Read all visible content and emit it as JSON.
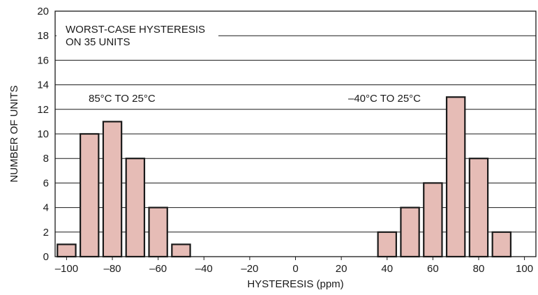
{
  "chart_data": {
    "type": "bar",
    "title": "",
    "xlabel": "HYSTERESIS (ppm)",
    "ylabel": "NUMBER OF UNITS",
    "xlim": [
      -105,
      105
    ],
    "ylim": [
      0,
      20
    ],
    "xticks": [
      -100,
      -80,
      -60,
      -40,
      -20,
      0,
      20,
      40,
      60,
      80,
      100
    ],
    "xtick_labels": [
      "–100",
      "–80",
      "–60",
      "–40",
      "–20",
      "0",
      "20",
      "40",
      "60",
      "80",
      "100"
    ],
    "yticks": [
      0,
      2,
      4,
      6,
      8,
      10,
      12,
      14,
      16,
      18,
      20
    ],
    "grid": "horizontal",
    "bin_width": 10,
    "bar_color": "#e6bcb6",
    "bar_edge_color": "#1a1a1a",
    "bars": [
      {
        "x": -100,
        "value": 1
      },
      {
        "x": -90,
        "value": 10
      },
      {
        "x": -80,
        "value": 11
      },
      {
        "x": -70,
        "value": 8
      },
      {
        "x": -60,
        "value": 4
      },
      {
        "x": -50,
        "value": 1
      },
      {
        "x": 40,
        "value": 2
      },
      {
        "x": 50,
        "value": 4
      },
      {
        "x": 60,
        "value": 6
      },
      {
        "x": 70,
        "value": 13
      },
      {
        "x": 80,
        "value": 8
      },
      {
        "x": 90,
        "value": 2
      }
    ],
    "annotations": {
      "note_line1": "WORST-CASE HYSTERESIS",
      "note_line2": "ON 35 UNITS",
      "left_group": "85°C TO 25°C",
      "right_group": "–40°C TO 25°C"
    }
  }
}
